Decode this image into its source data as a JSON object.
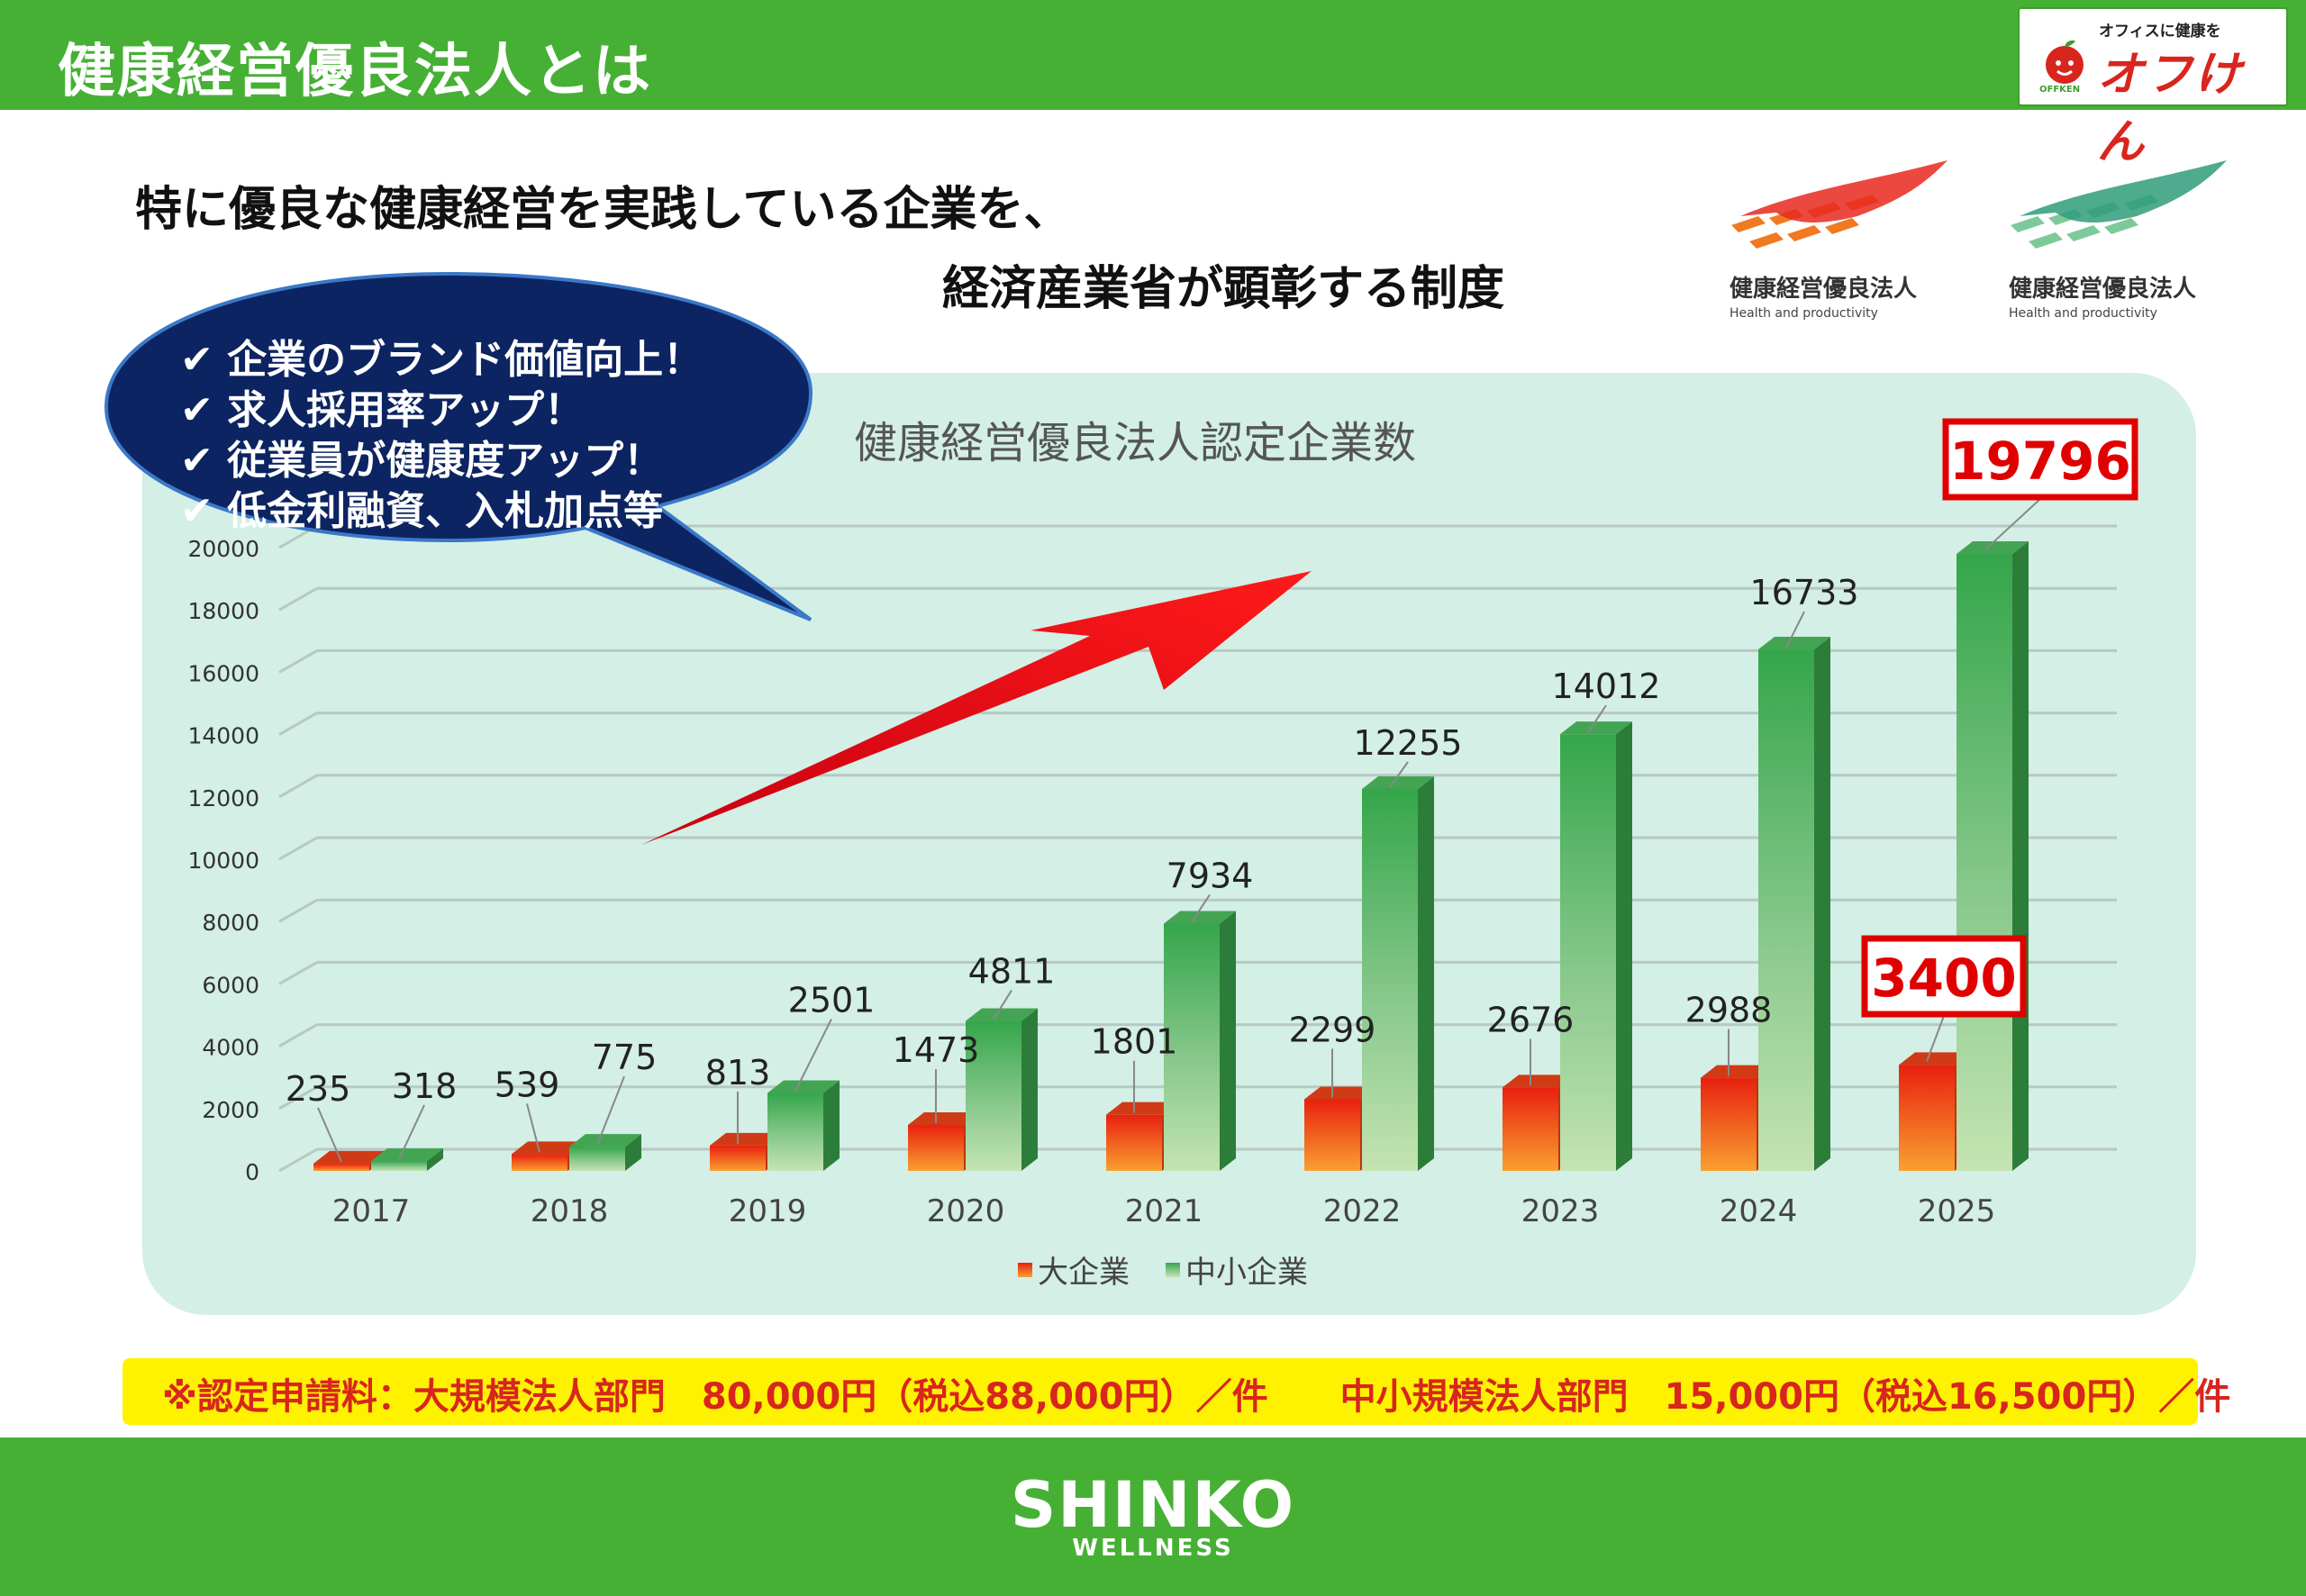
{
  "header": {
    "title": "健康経営優良法人とは",
    "logo_tagline": "オフィスに健康を",
    "logo_name": "オフけん",
    "logo_small": "OFFKEN"
  },
  "headline": {
    "line1": "特に優良な健康経営を実践している企業を、",
    "line2": "経済産業省が顕彰する制度"
  },
  "certificates": [
    {
      "label": "健康経営優良法人",
      "sub": "Health and productivity",
      "color": "orange"
    },
    {
      "label": "健康経営優良法人",
      "sub": "Health and productivity",
      "color": "green"
    }
  ],
  "bubble": {
    "items": [
      "✔ 企業のブランド価値向上！",
      "✔ 求人採用率アップ！",
      "✔ 従業員が健康度アップ！",
      "✔ 低金利融資、入札加点等"
    ],
    "color": "#0c2461"
  },
  "chart_data": {
    "type": "bar",
    "title": "健康経営優良法人認定企業数",
    "categories": [
      "2017",
      "2018",
      "2019",
      "2020",
      "2021",
      "2022",
      "2023",
      "2024",
      "2025"
    ],
    "series": [
      {
        "name": "大企業",
        "values": [
          235,
          539,
          813,
          1473,
          1801,
          2299,
          2676,
          2988,
          3400
        ],
        "color": "#f04a12"
      },
      {
        "name": "中小企業",
        "values": [
          318,
          775,
          2501,
          4811,
          7934,
          12255,
          14012,
          16733,
          19796
        ],
        "color": "#3cab4e"
      }
    ],
    "y_ticks": [
      "0",
      "2000",
      "4000",
      "6000",
      "8000",
      "10000",
      "12000",
      "14000",
      "16000",
      "18000",
      "20000"
    ],
    "ylim": [
      0,
      20000
    ],
    "grid": true,
    "legend": "bottom",
    "highlighted": [
      "19796",
      "3400"
    ]
  },
  "fee": {
    "text": "※認定申請料：大規模法人部門　80,000円（税込88,000円）／件　　中小規模法人部門　15,000円（税込16,500円）／件"
  },
  "footer": {
    "brand": "SHINKO",
    "sub": "WELLNESS"
  }
}
